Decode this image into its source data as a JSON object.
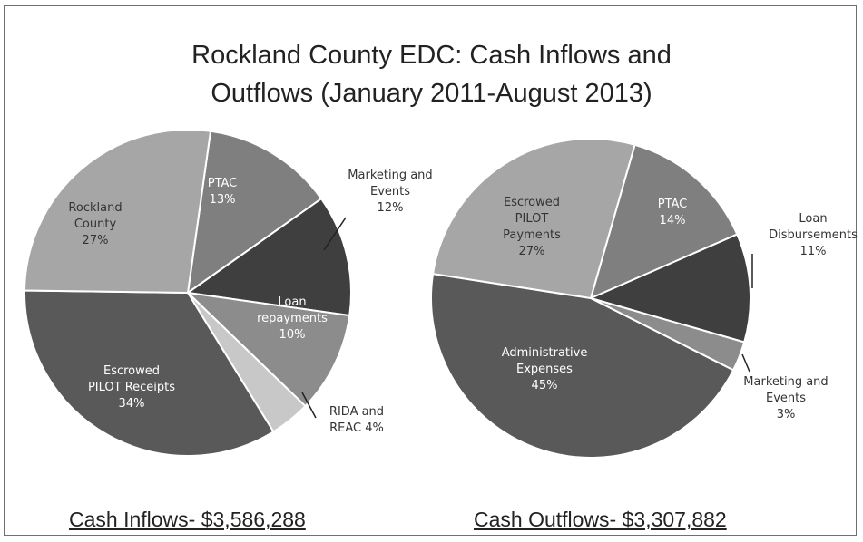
{
  "chart_data": [
    {
      "type": "pie",
      "title": "Rockland County EDC:  Cash Inflows and Outflows (January 2011-August 2013)",
      "caption": "Cash Inflows- $3,586,288",
      "slices": [
        {
          "label_lines": [
            "PTAC",
            "13%"
          ],
          "value": 13,
          "color": "#7f7f7f"
        },
        {
          "label_lines": [
            "Marketing and",
            "Events",
            "12%"
          ],
          "value": 12,
          "color": "#3f3f3f"
        },
        {
          "label_lines": [
            "Loan",
            "repayments",
            "10%"
          ],
          "value": 10,
          "color": "#8c8c8c"
        },
        {
          "label_lines": [
            "RIDA and",
            "REAC 4%"
          ],
          "value": 4,
          "color": "#c8c8c8"
        },
        {
          "label_lines": [
            "Escrowed",
            "PILOT Receipts",
            "34%"
          ],
          "value": 34,
          "color": "#595959"
        },
        {
          "label_lines": [
            "Rockland",
            "County",
            "27%"
          ],
          "value": 27,
          "color": "#a6a6a6"
        }
      ]
    },
    {
      "type": "pie",
      "caption": "Cash Outflows- $3,307,882",
      "slices": [
        {
          "label_lines": [
            "PTAC",
            "14%"
          ],
          "value": 14,
          "color": "#7f7f7f"
        },
        {
          "label_lines": [
            "Loan",
            "Disbursements",
            "11%"
          ],
          "value": 11,
          "color": "#3f3f3f"
        },
        {
          "label_lines": [
            "Marketing and",
            "Events",
            "3%"
          ],
          "value": 3,
          "color": "#8c8c8c"
        },
        {
          "label_lines": [
            "Administrative",
            "Expenses",
            "45%"
          ],
          "value": 45,
          "color": "#595959"
        },
        {
          "label_lines": [
            "Escrowed",
            "PILOT",
            "Payments",
            "27%"
          ],
          "value": 27,
          "color": "#a6a6a6"
        }
      ]
    }
  ],
  "title_lines": [
    "Rockland County EDC:  Cash Inflows and",
    "Outflows (January 2011-August 2013)"
  ],
  "captions": {
    "inflows": "Cash Inflows- $3,586,288",
    "outflows": "Cash Outflows- $3,307,882"
  }
}
